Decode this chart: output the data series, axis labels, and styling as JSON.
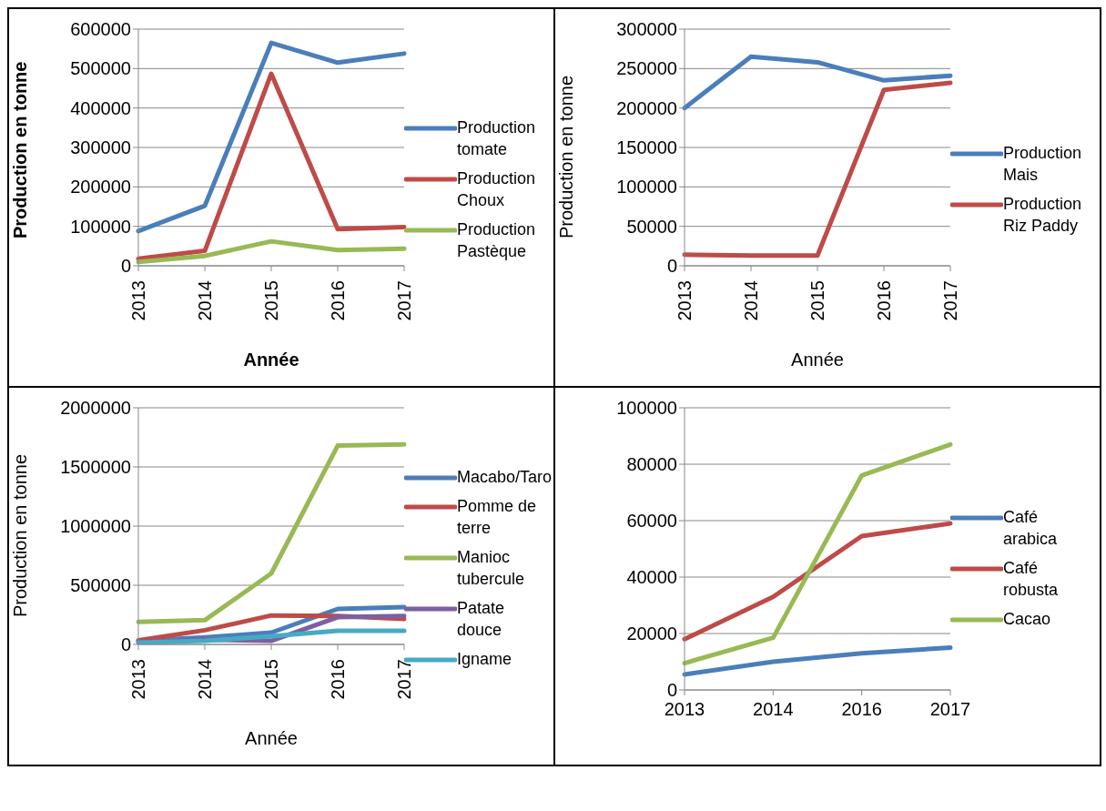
{
  "chart_data": [
    {
      "type": "line",
      "categories": [
        "2013",
        "2014",
        "2015",
        "2016",
        "2017"
      ],
      "xlabel": "Année",
      "ylabel": "Production en tonne",
      "ylim": [
        0,
        600000
      ],
      "yticks": [
        0,
        100000,
        200000,
        300000,
        400000,
        500000,
        600000
      ],
      "grid": "y",
      "legend": "right",
      "marker": "none",
      "series": [
        {
          "name": "Production tomate",
          "color": "#4a7ebb",
          "values": [
            88000,
            152000,
            565000,
            515000,
            538000
          ]
        },
        {
          "name": "Production Choux",
          "color": "#be4b48",
          "values": [
            18000,
            38000,
            487000,
            93000,
            98000
          ]
        },
        {
          "name": "Production Pastèque",
          "color": "#98b954",
          "values": [
            10000,
            25000,
            62000,
            40000,
            43000
          ]
        }
      ]
    },
    {
      "type": "line",
      "categories": [
        "2013",
        "2014",
        "2015",
        "2016",
        "2017"
      ],
      "xlabel": "Année",
      "ylabel": "Production en tonne",
      "ylim": [
        0,
        300000
      ],
      "yticks": [
        0,
        50000,
        100000,
        150000,
        200000,
        250000,
        300000
      ],
      "grid": "y",
      "legend": "right",
      "marker": "none",
      "series": [
        {
          "name": "Production Mais",
          "color": "#4a7ebb",
          "values": [
            200000,
            265000,
            258000,
            235000,
            241000
          ]
        },
        {
          "name": "Production Riz Paddy",
          "color": "#be4b48",
          "values": [
            14000,
            13000,
            13000,
            223000,
            232000
          ]
        }
      ]
    },
    {
      "type": "line",
      "categories": [
        "2013",
        "2014",
        "2015",
        "2016",
        "2017"
      ],
      "xlabel": "Année",
      "ylabel": "Production en tonne",
      "ylim": [
        0,
        2000000
      ],
      "yticks": [
        0,
        500000,
        1000000,
        1500000,
        2000000
      ],
      "grid": "y",
      "legend": "right",
      "marker": "none",
      "series": [
        {
          "name": "Macabo/Taro",
          "color": "#4a7ebb",
          "values": [
            30000,
            60000,
            100000,
            300000,
            315000
          ]
        },
        {
          "name": "Pomme de terre",
          "color": "#be4b48",
          "values": [
            35000,
            120000,
            245000,
            240000,
            215000
          ]
        },
        {
          "name": "Manioc tubercule",
          "color": "#98b954",
          "values": [
            190000,
            205000,
            600000,
            1680000,
            1690000
          ]
        },
        {
          "name": "Patate douce",
          "color": "#7d60a0",
          "values": [
            20000,
            40000,
            30000,
            230000,
            240000
          ]
        },
        {
          "name": "Igname",
          "color": "#46aac5",
          "values": [
            15000,
            30000,
            70000,
            115000,
            115000
          ]
        }
      ]
    },
    {
      "type": "line",
      "categories": [
        "2013",
        "2014",
        "2016",
        "2017"
      ],
      "ylim": [
        0,
        100000
      ],
      "yticks": [
        0,
        20000,
        40000,
        60000,
        80000,
        100000
      ],
      "grid": "y",
      "legend": "right",
      "marker": "none",
      "series": [
        {
          "name": "Café arabica",
          "color": "#4a7ebb",
          "values": [
            5500,
            10000,
            13000,
            15000
          ]
        },
        {
          "name": "Café robusta",
          "color": "#be4b48",
          "values": [
            18000,
            33000,
            54500,
            59000
          ]
        },
        {
          "name": "Cacao",
          "color": "#98b954",
          "values": [
            9500,
            18500,
            76000,
            87000
          ]
        }
      ]
    }
  ]
}
